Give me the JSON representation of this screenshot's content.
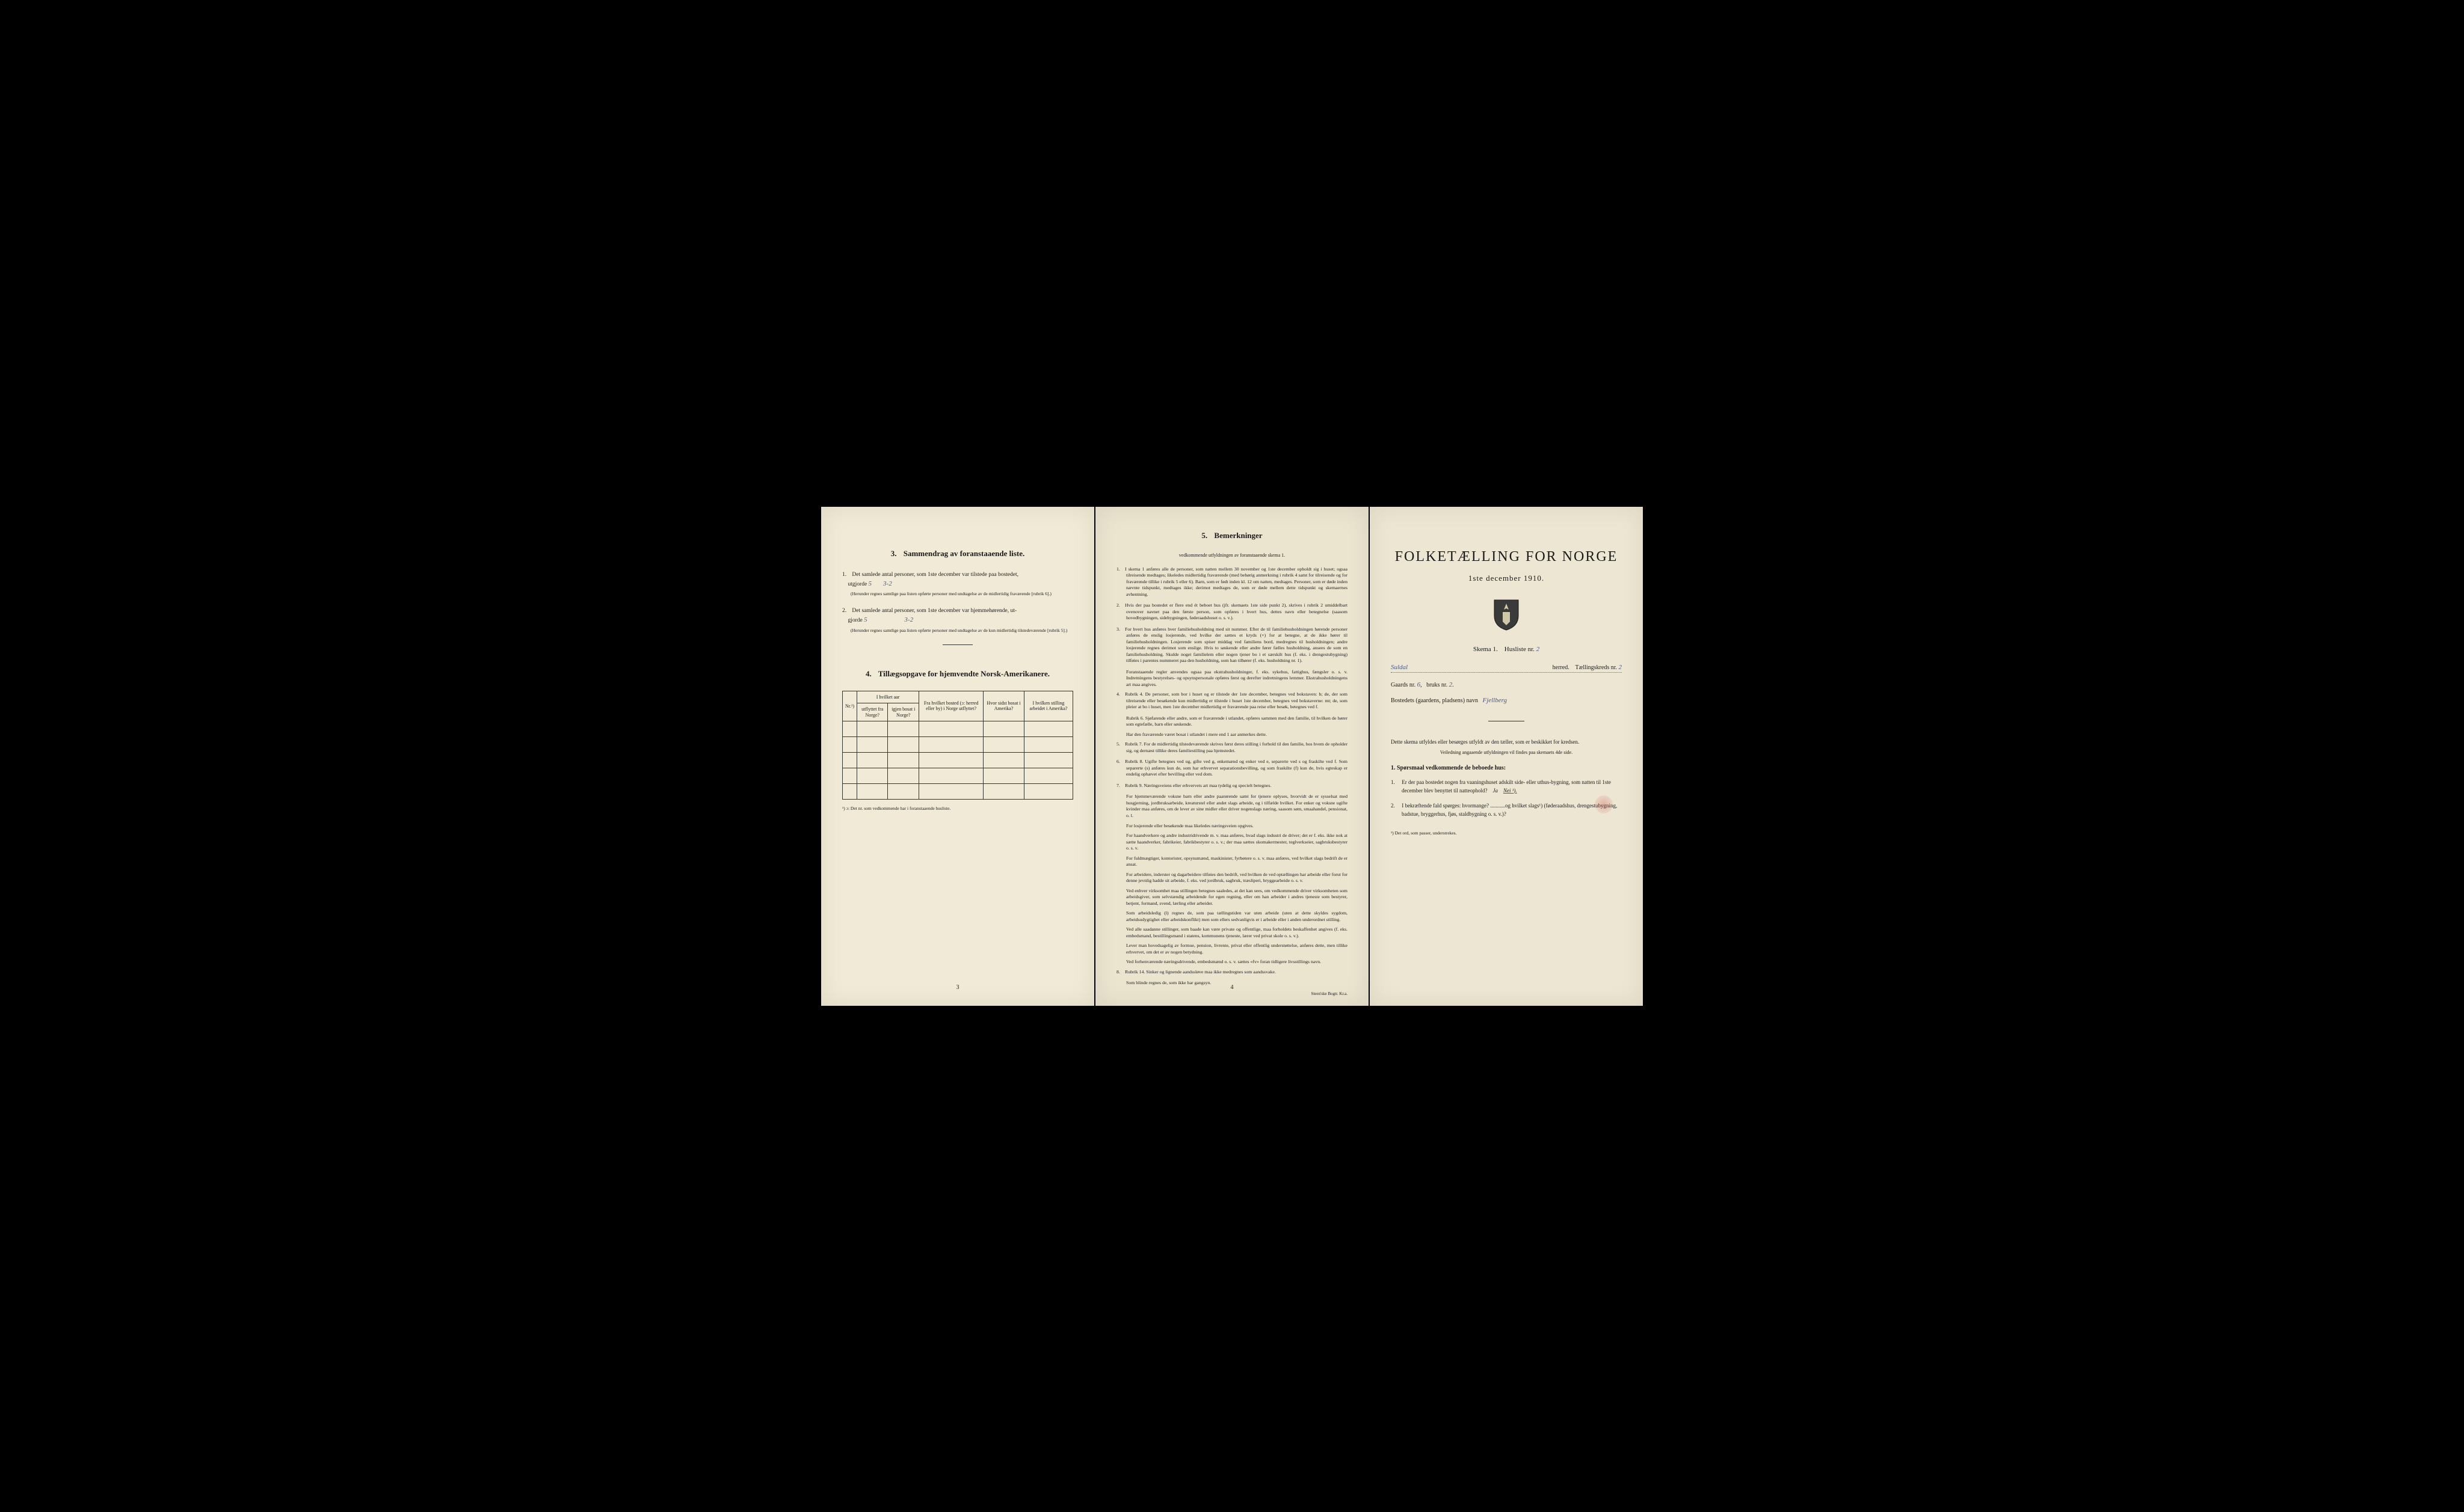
{
  "page1": {
    "section3_num": "3.",
    "section3_title": "Sammendrag av foranstaaende liste.",
    "item1_num": "1.",
    "item1_text": "Det samlede antal personer, som 1ste december var tilstede paa bostedet,",
    "item1_utgjorde": "utgjorde",
    "item1_val": "5",
    "item1_val2": "3-2",
    "item1_note": "(Herunder regnes samtlige paa listen opførte personer med undtagelse av de midlertidig fraværende [rubrik 6].)",
    "item2_num": "2.",
    "item2_text": "Det samlede antal personer, som 1ste december var hjemmehørende, ut-",
    "item2_gjorde": "gjorde",
    "item2_val": "5",
    "item2_val2": "3-2",
    "item2_note": "(Herunder regnes samtlige paa listen opførte personer med undtagelse av de kun midlertidig tilstedeværende [rubrik 5].)",
    "section4_num": "4.",
    "section4_title": "Tillægsopgave for hjemvendte Norsk-Amerikanere.",
    "table": {
      "col_nr": "Nr.¹)",
      "col_aar": "I hvilket aar",
      "col_aar_sub1": "utflyttet fra Norge?",
      "col_aar_sub2": "igjen bosat i Norge?",
      "col_bosted": "Fra hvilket bosted (ɔ: herred eller by) i Norge utflyttet?",
      "col_sidst": "Hvor sidst bosat i Amerika?",
      "col_stilling": "I hvilken stilling arbeidet i Amerika?"
    },
    "footnote": "¹) ɔ: Det nr. som vedkommende har i foranstaaende husliste.",
    "page_number": "3"
  },
  "page2": {
    "section5_num": "5.",
    "section5_title": "Bemerkninger",
    "subtitle": "vedkommende utfyldningen av foranstaaende skema 1.",
    "rules": [
      {
        "n": "1.",
        "t": "I skema 1 anføres alle de personer, som natten mellem 30 november og 1ste december opholdt sig i huset; ogsaa tilreisende medtages; likeledes midlertidig fraværende (med behørig anmerkning i rubrik 4 samt for tilreisende og for fraværende tillike i rubrik 5 eller 6). Barn, som er født inden kl. 12 om natten, medtages. Personer, som er døde inden nævnte tidspunkt, medtages ikke; derimot medtages de, som er døde mellem dette tidspunkt og skemaernes avhentning."
      },
      {
        "n": "2.",
        "t": "Hvis der paa bostedet er flere end ét beboet hus (jfr. skemaets 1ste side punkt 2), skrives i rubrik 2 umiddelbart ovenover navnet paa den første person, som opføres i hvert hus, dettes navn eller betegnelse (saasom hovedbygningen, sidebygningen, føderaadshuset o. s. v.)."
      },
      {
        "n": "3.",
        "t": "For hvert hus anføres hver familiehusholdning med sit nummer. Efter de til familiehusholdningen hørende personer anføres de enslig losjerende, ved hvilke der sættes et kryds (×) for at betegne, at de ikke hører til familiehusholdningen. Losjerende som spiser middag ved familiens bord, medregnes til husholdningen; andre losjerende regnes derimot som enslige. Hvis to søskende eller andre fører fælles husholdning, ansees de som en familiehusholdning. Skulde noget familielem eller nogen tjener bo i et særskilt hus (f. eks. i drengestubygning) tilføies i parentes nummeret paa den husholdning, som han tilhører (f. eks. husholdning nr. 1)."
      },
      {
        "n": "",
        "t": "Foranstaaende regler anvendes ogsaa paa ekstrahusholdninger, f. eks. sykehus, fattighus, fængsler o. s. v. Indretningens bestyrelses- og opsynspersonale opføres først og derefter indretningens lemmer. Ekstrahusholdningens art maa angives."
      },
      {
        "n": "4.",
        "t": "Rubrik 4. De personer, som bor i huset og er tilstede der 1ste december, betegnes ved bokstaven: b; de, der som tilreisende eller besøkende kun midlertidig er tilstede i huset 1ste december, betegnes ved bokstaverne: mt; de, som pleier at bo i huset, men 1ste december midlertidig er fraværende paa reise eller besøk, betegnes ved f."
      },
      {
        "n": "",
        "t": "Rubrik 6. Sjøfarende eller andre, som er fraværende i utlandet, opføres sammen med den familie, til hvilken de hører som egtefælle, barn eller søskende."
      },
      {
        "n": "",
        "t": "Har den fraværende været bosat i utlandet i mere end 1 aar anmerkes dette."
      },
      {
        "n": "5.",
        "t": "Rubrik 7. For de midlertidig tilstedeværende skrives først deres stilling i forhold til den familie, hos hvem de opholder sig, og dernæst tillike deres familiestilling paa hjemstedet."
      },
      {
        "n": "6.",
        "t": "Rubrik 8. Ugifte betegnes ved ug, gifte ved g, enkemænd og enker ved e, separerte ved s og fraskilte ved f. Som separerte (s) anføres kun de, som har erhvervet separationsbevilling, og som fraskilte (f) kun de, hvis egteskap er endelig ophævet efter bevilling eller ved dom."
      },
      {
        "n": "7.",
        "t": "Rubrik 9. Næringsveiens eller erhvervets art maa tydelig og specielt betegnes."
      },
      {
        "n": "",
        "t": "For hjemmeværende voksne barn eller andre paarørende samt for tjenere oplyses, hvorvidt de er sysselsat med husgjerning, jordbruksarbeide, kreaturstel eller andet slags arbeide, og i tilfælde hvilket. For enker og voksne ugifte kvinder maa anføres, om de lever av sine midler eller driver nogenslags næring, saasom søm, smaahandel, pensionat, o. l."
      },
      {
        "n": "",
        "t": "For losjerende eller besøkende maa likeledes næringsveien opgives."
      },
      {
        "n": "",
        "t": "For haandverkere og andre industridrivende m. v. maa anføres, hvad slags industri de driver; det er f. eks. ikke nok at sætte haandverker, fabrikeier, fabrikbestyrer o. s. v.; der maa sættes skomakermester, teglverkseier, sagbruksbestyrer o. s. v."
      },
      {
        "n": "",
        "t": "For fuldmægtiger, kontorister, opsynsmænd, maskinister, fyrbøtere o. s. v. maa anføres, ved hvilket slags bedrift de er ansat."
      },
      {
        "n": "",
        "t": "For arbeidere, inderster og dagarbeidere tilføies den bedrift, ved hvilken de ved optællingen har arbeide eller forut for denne jevnlig hadde sit arbeide, f. eks. ved jordbruk, sagbruk, træsliperi, bryggearbeide o. s. v."
      },
      {
        "n": "",
        "t": "Ved enhver virksomhet maa stillingen betegnes saaledes, at det kan sees, om vedkommende driver virksomheten som arbeidsgiver, som selvstændig arbeidende for egen regning, eller om han arbeider i andres tjeneste som bestyrer, betjent, formand, svend, lærling eller arbeider."
      },
      {
        "n": "",
        "t": "Som arbeidsledig (l) regnes de, som paa tællingstiden var uten arbeide (uten at dette skyldes sygdom, arbeidsudygtighet eller arbeidskonflikt) men som ellers sedvanligvis er i arbeide eller i anden underordnet stilling."
      },
      {
        "n": "",
        "t": "Ved alle saadanne stillinger, som baade kan være private og offentlige, maa forholdets beskaffenhet angives (f. eks. embedsmand, bestillingsmand i statens, kommunens tjeneste, lærer ved privat skole o. s. v.)."
      },
      {
        "n": "",
        "t": "Lever man hovedsagelig av formue, pension, livrente, privat eller offentlig understøttelse, anføres dette, men tillike erhvervet, om det er av nogen betydning."
      },
      {
        "n": "",
        "t": "Ved forhenværende næringsdrivende, embedsmænd o. s. v. sættes «fv» foran tidligere livsstillings navn."
      },
      {
        "n": "8.",
        "t": "Rubrik 14. Sinker og lignende aandssløve maa ikke medregnes som aandssvake."
      },
      {
        "n": "",
        "t": "Som blinde regnes de, som ikke har gangsyn."
      }
    ],
    "page_number": "4",
    "printer": "Steen'ske Bogtr. Kr.a."
  },
  "page3": {
    "main_title": "FOLKETÆLLING FOR NORGE",
    "date": "1ste december 1910.",
    "skema": "Skema 1.",
    "husliste": "Husliste nr.",
    "husliste_val": "2",
    "herred_val": "Suldal",
    "herred_label": "herred.",
    "tkreds": "Tællingskreds nr.",
    "tkreds_val": "2",
    "gaards": "Gaards nr.",
    "gaards_val": "6",
    "bruks": "bruks nr.",
    "bruks_val": "2",
    "bosted": "Bostedets (gaardens, pladsens) navn",
    "bosted_val": "Fjellberg",
    "instr1": "Dette skema utfyldes eller besørges utfyldt av den tæller, som er beskikket for kredsen.",
    "instr2": "Veiledning angaaende utfyldningen vil findes paa skemaets 4de side.",
    "q_heading_num": "1.",
    "q_heading": "Spørsmaal vedkommende de beboede hus:",
    "q1_num": "1.",
    "q1": "Er der paa bostedet nogen fra vaaningshuset adskilt side- eller uthus-bygning, som natten til 1ste december blev benyttet til natteophold?",
    "q1_ja": "Ja",
    "q1_nei": "Nei ¹).",
    "q2_num": "2.",
    "q2": "I bekræftende fald spørges: hvormange? ...........og hvilket slags¹) (føderaadshus, drengestubygning, badstue, bryggerhus, fjøs, staldbygning o. s. v.)?",
    "foot": "¹) Det ord, som passer, understrekes."
  }
}
